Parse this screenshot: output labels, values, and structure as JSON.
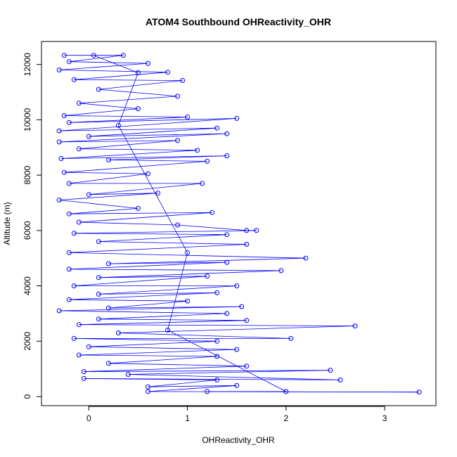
{
  "chart_data": {
    "type": "line",
    "title": "ATOM4 Southbound OHReactivity_OHR",
    "xlabel": "OHReactivity_OHR",
    "ylabel": "Altitude (m)",
    "xlim": [
      -0.48,
      3.52
    ],
    "ylim": [
      -330,
      12830
    ],
    "xticks": [
      0,
      1,
      2,
      3
    ],
    "yticks": [
      0,
      2000,
      4000,
      6000,
      8000,
      10000,
      12000
    ],
    "grid": false,
    "legend": "none",
    "series_color": "#0000ff",
    "marker": "open-circle",
    "series": [
      {
        "values": [
          [
            -0.25,
            12330
          ],
          [
            0.35,
            12330
          ],
          [
            -0.2,
            12100
          ],
          [
            0.6,
            12040
          ],
          [
            -0.3,
            11800
          ],
          [
            0.8,
            11720
          ],
          [
            -0.15,
            11450
          ],
          [
            0.95,
            11420
          ],
          [
            0.1,
            11100
          ],
          [
            0.9,
            10850
          ],
          [
            -0.1,
            10600
          ],
          [
            0.5,
            10400
          ],
          [
            -0.25,
            10150
          ],
          [
            1.0,
            10100
          ],
          [
            -0.2,
            9900
          ],
          [
            1.5,
            10050
          ],
          [
            -0.3,
            9600
          ],
          [
            1.3,
            9700
          ],
          [
            0.0,
            9400
          ],
          [
            1.4,
            9500
          ],
          [
            -0.3,
            9200
          ],
          [
            0.9,
            9250
          ],
          [
            -0.1,
            8950
          ],
          [
            1.1,
            8900
          ],
          [
            -0.28,
            8600
          ],
          [
            1.4,
            8700
          ],
          [
            0.2,
            8550
          ],
          [
            1.2,
            8500
          ],
          [
            -0.25,
            8100
          ],
          [
            0.6,
            8050
          ],
          [
            -0.2,
            7700
          ],
          [
            1.15,
            7700
          ],
          [
            0.0,
            7300
          ],
          [
            0.7,
            7350
          ],
          [
            -0.3,
            7100
          ],
          [
            0.5,
            6800
          ],
          [
            -0.2,
            6600
          ],
          [
            1.25,
            6650
          ],
          [
            -0.1,
            6300
          ],
          [
            0.9,
            6200
          ],
          [
            1.6,
            6000
          ],
          [
            1.7,
            6000
          ],
          [
            -0.15,
            5900
          ],
          [
            1.4,
            5850
          ],
          [
            0.1,
            5600
          ],
          [
            1.6,
            5500
          ],
          [
            -0.2,
            5200
          ],
          [
            2.2,
            5000
          ],
          [
            0.2,
            4800
          ],
          [
            1.4,
            4850
          ],
          [
            -0.2,
            4600
          ],
          [
            1.95,
            4550
          ],
          [
            0.1,
            4300
          ],
          [
            1.2,
            4350
          ],
          [
            -0.15,
            4000
          ],
          [
            1.5,
            4000
          ],
          [
            0.1,
            3700
          ],
          [
            1.3,
            3750
          ],
          [
            -0.2,
            3500
          ],
          [
            1.0,
            3450
          ],
          [
            0.2,
            3200
          ],
          [
            1.55,
            3250
          ],
          [
            -0.3,
            3100
          ],
          [
            1.4,
            3000
          ],
          [
            0.1,
            2800
          ],
          [
            1.6,
            2750
          ],
          [
            -0.1,
            2600
          ],
          [
            2.7,
            2550
          ],
          [
            0.3,
            2300
          ],
          [
            2.05,
            2100
          ],
          [
            -0.15,
            2100
          ],
          [
            1.3,
            2000
          ],
          [
            0.0,
            1800
          ],
          [
            1.5,
            1700
          ],
          [
            -0.1,
            1500
          ],
          [
            1.3,
            1450
          ],
          [
            0.2,
            1200
          ],
          [
            1.6,
            1100
          ],
          [
            -0.05,
            900
          ],
          [
            2.45,
            950
          ],
          [
            0.4,
            800
          ],
          [
            2.55,
            600
          ],
          [
            -0.05,
            650
          ],
          [
            1.3,
            600
          ],
          [
            0.6,
            350
          ],
          [
            1.5,
            400
          ],
          [
            0.6,
            180
          ],
          [
            3.35,
            160
          ],
          [
            1.2,
            180
          ],
          [
            2.0,
            180
          ],
          [
            0.8,
            2400
          ],
          [
            1.0,
            5200
          ],
          [
            0.3,
            9800
          ],
          [
            0.5,
            11700
          ],
          [
            0.05,
            12330
          ]
        ]
      }
    ]
  }
}
